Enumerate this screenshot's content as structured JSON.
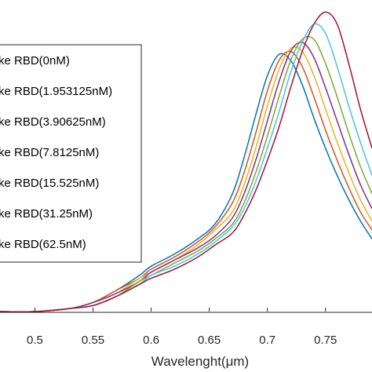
{
  "chart_data": {
    "type": "line",
    "xlabel": "Wavelenght(μm)",
    "ylabel": "",
    "xlim": [
      0.47,
      0.79
    ],
    "ylim": [
      0,
      1.03
    ],
    "x_ticks": [
      0.5,
      0.55,
      0.6,
      0.65,
      0.7,
      0.75
    ],
    "x_tick_labels": [
      "0.5",
      "0.55",
      "0.6",
      "0.65",
      "0.7",
      "0.75"
    ],
    "grid": false,
    "legend_position": "top-left",
    "series": [
      {
        "name": "...ke RBD(0nM)",
        "legend_label": "ke RBD(0nM)",
        "color": "#0072BD",
        "x": [
          0.47,
          0.5,
          0.53,
          0.55,
          0.57,
          0.59,
          0.6,
          0.62,
          0.64,
          0.655,
          0.67,
          0.68,
          0.69,
          0.7,
          0.71,
          0.72,
          0.73,
          0.74,
          0.75,
          0.76,
          0.77,
          0.78,
          0.79
        ],
        "y": [
          0.0,
          0.0,
          0.01,
          0.03,
          0.07,
          0.12,
          0.15,
          0.19,
          0.24,
          0.29,
          0.39,
          0.51,
          0.65,
          0.78,
          0.85,
          0.83,
          0.75,
          0.64,
          0.54,
          0.45,
          0.37,
          0.3,
          0.24
        ]
      },
      {
        "name": "...ke RBD(1.953125nM)",
        "legend_label": "ke RBD(1.953125nM)",
        "color": "#D95319",
        "x": [
          0.47,
          0.5,
          0.53,
          0.55,
          0.57,
          0.59,
          0.6,
          0.62,
          0.64,
          0.655,
          0.67,
          0.68,
          0.69,
          0.7,
          0.71,
          0.72,
          0.73,
          0.74,
          0.75,
          0.76,
          0.77,
          0.78,
          0.79
        ],
        "y": [
          0.0,
          0.0,
          0.01,
          0.03,
          0.07,
          0.11,
          0.14,
          0.18,
          0.23,
          0.28,
          0.36,
          0.46,
          0.59,
          0.73,
          0.83,
          0.86,
          0.81,
          0.71,
          0.6,
          0.5,
          0.41,
          0.33,
          0.27
        ]
      },
      {
        "name": "...ke RBD(3.90625nM)",
        "legend_label": "ke RBD(3.90625nM)",
        "color": "#EDB120",
        "x": [
          0.47,
          0.5,
          0.53,
          0.55,
          0.57,
          0.59,
          0.6,
          0.62,
          0.64,
          0.655,
          0.67,
          0.68,
          0.69,
          0.7,
          0.71,
          0.72,
          0.73,
          0.74,
          0.75,
          0.76,
          0.77,
          0.78,
          0.79
        ],
        "y": [
          0.0,
          0.0,
          0.01,
          0.03,
          0.06,
          0.11,
          0.13,
          0.17,
          0.22,
          0.27,
          0.33,
          0.42,
          0.54,
          0.68,
          0.8,
          0.87,
          0.86,
          0.78,
          0.67,
          0.56,
          0.46,
          0.37,
          0.3
        ]
      },
      {
        "name": "...ke RBD(7.8125nM)",
        "legend_label": "ke RBD(7.8125nM)",
        "color": "#7E2F8E",
        "x": [
          0.47,
          0.5,
          0.53,
          0.55,
          0.57,
          0.59,
          0.6,
          0.62,
          0.64,
          0.655,
          0.67,
          0.68,
          0.69,
          0.7,
          0.71,
          0.72,
          0.73,
          0.74,
          0.75,
          0.76,
          0.77,
          0.78,
          0.79
        ],
        "y": [
          0.0,
          0.0,
          0.01,
          0.03,
          0.06,
          0.1,
          0.13,
          0.17,
          0.21,
          0.25,
          0.31,
          0.39,
          0.5,
          0.63,
          0.76,
          0.86,
          0.89,
          0.84,
          0.74,
          0.63,
          0.52,
          0.42,
          0.34
        ]
      },
      {
        "name": "...ke RBD(15.525nM)",
        "legend_label": "ke RBD(15.525nM)",
        "color": "#77AC30",
        "x": [
          0.47,
          0.5,
          0.53,
          0.55,
          0.57,
          0.59,
          0.6,
          0.62,
          0.64,
          0.655,
          0.67,
          0.68,
          0.69,
          0.7,
          0.71,
          0.72,
          0.73,
          0.74,
          0.75,
          0.76,
          0.77,
          0.78,
          0.79
        ],
        "y": [
          0.0,
          0.0,
          0.01,
          0.02,
          0.05,
          0.1,
          0.12,
          0.16,
          0.2,
          0.24,
          0.29,
          0.36,
          0.46,
          0.58,
          0.71,
          0.83,
          0.9,
          0.9,
          0.82,
          0.71,
          0.59,
          0.48,
          0.39
        ]
      },
      {
        "name": "...ke RBD(31.25nM)",
        "legend_label": "ke RBD(31.25nM)",
        "color": "#4DBEEE",
        "x": [
          0.47,
          0.5,
          0.53,
          0.55,
          0.57,
          0.59,
          0.6,
          0.62,
          0.64,
          0.655,
          0.67,
          0.68,
          0.69,
          0.7,
          0.71,
          0.72,
          0.73,
          0.74,
          0.75,
          0.76,
          0.77,
          0.78,
          0.79
        ],
        "y": [
          0.0,
          0.0,
          0.01,
          0.02,
          0.05,
          0.09,
          0.12,
          0.15,
          0.19,
          0.23,
          0.28,
          0.34,
          0.43,
          0.54,
          0.66,
          0.79,
          0.89,
          0.95,
          0.92,
          0.81,
          0.68,
          0.56,
          0.45
        ]
      },
      {
        "name": "...ke RBD(62.5nM)",
        "legend_label": "ke RBD(62.5nM)",
        "color": "#A2142F",
        "x": [
          0.47,
          0.5,
          0.53,
          0.55,
          0.57,
          0.59,
          0.6,
          0.62,
          0.64,
          0.655,
          0.67,
          0.68,
          0.69,
          0.7,
          0.71,
          0.72,
          0.73,
          0.74,
          0.75,
          0.76,
          0.77,
          0.78,
          0.79
        ],
        "y": [
          0.0,
          0.0,
          0.01,
          0.02,
          0.05,
          0.09,
          0.11,
          0.14,
          0.18,
          0.22,
          0.26,
          0.32,
          0.4,
          0.5,
          0.61,
          0.74,
          0.86,
          0.95,
          0.99,
          0.95,
          0.82,
          0.67,
          0.54
        ]
      }
    ]
  }
}
